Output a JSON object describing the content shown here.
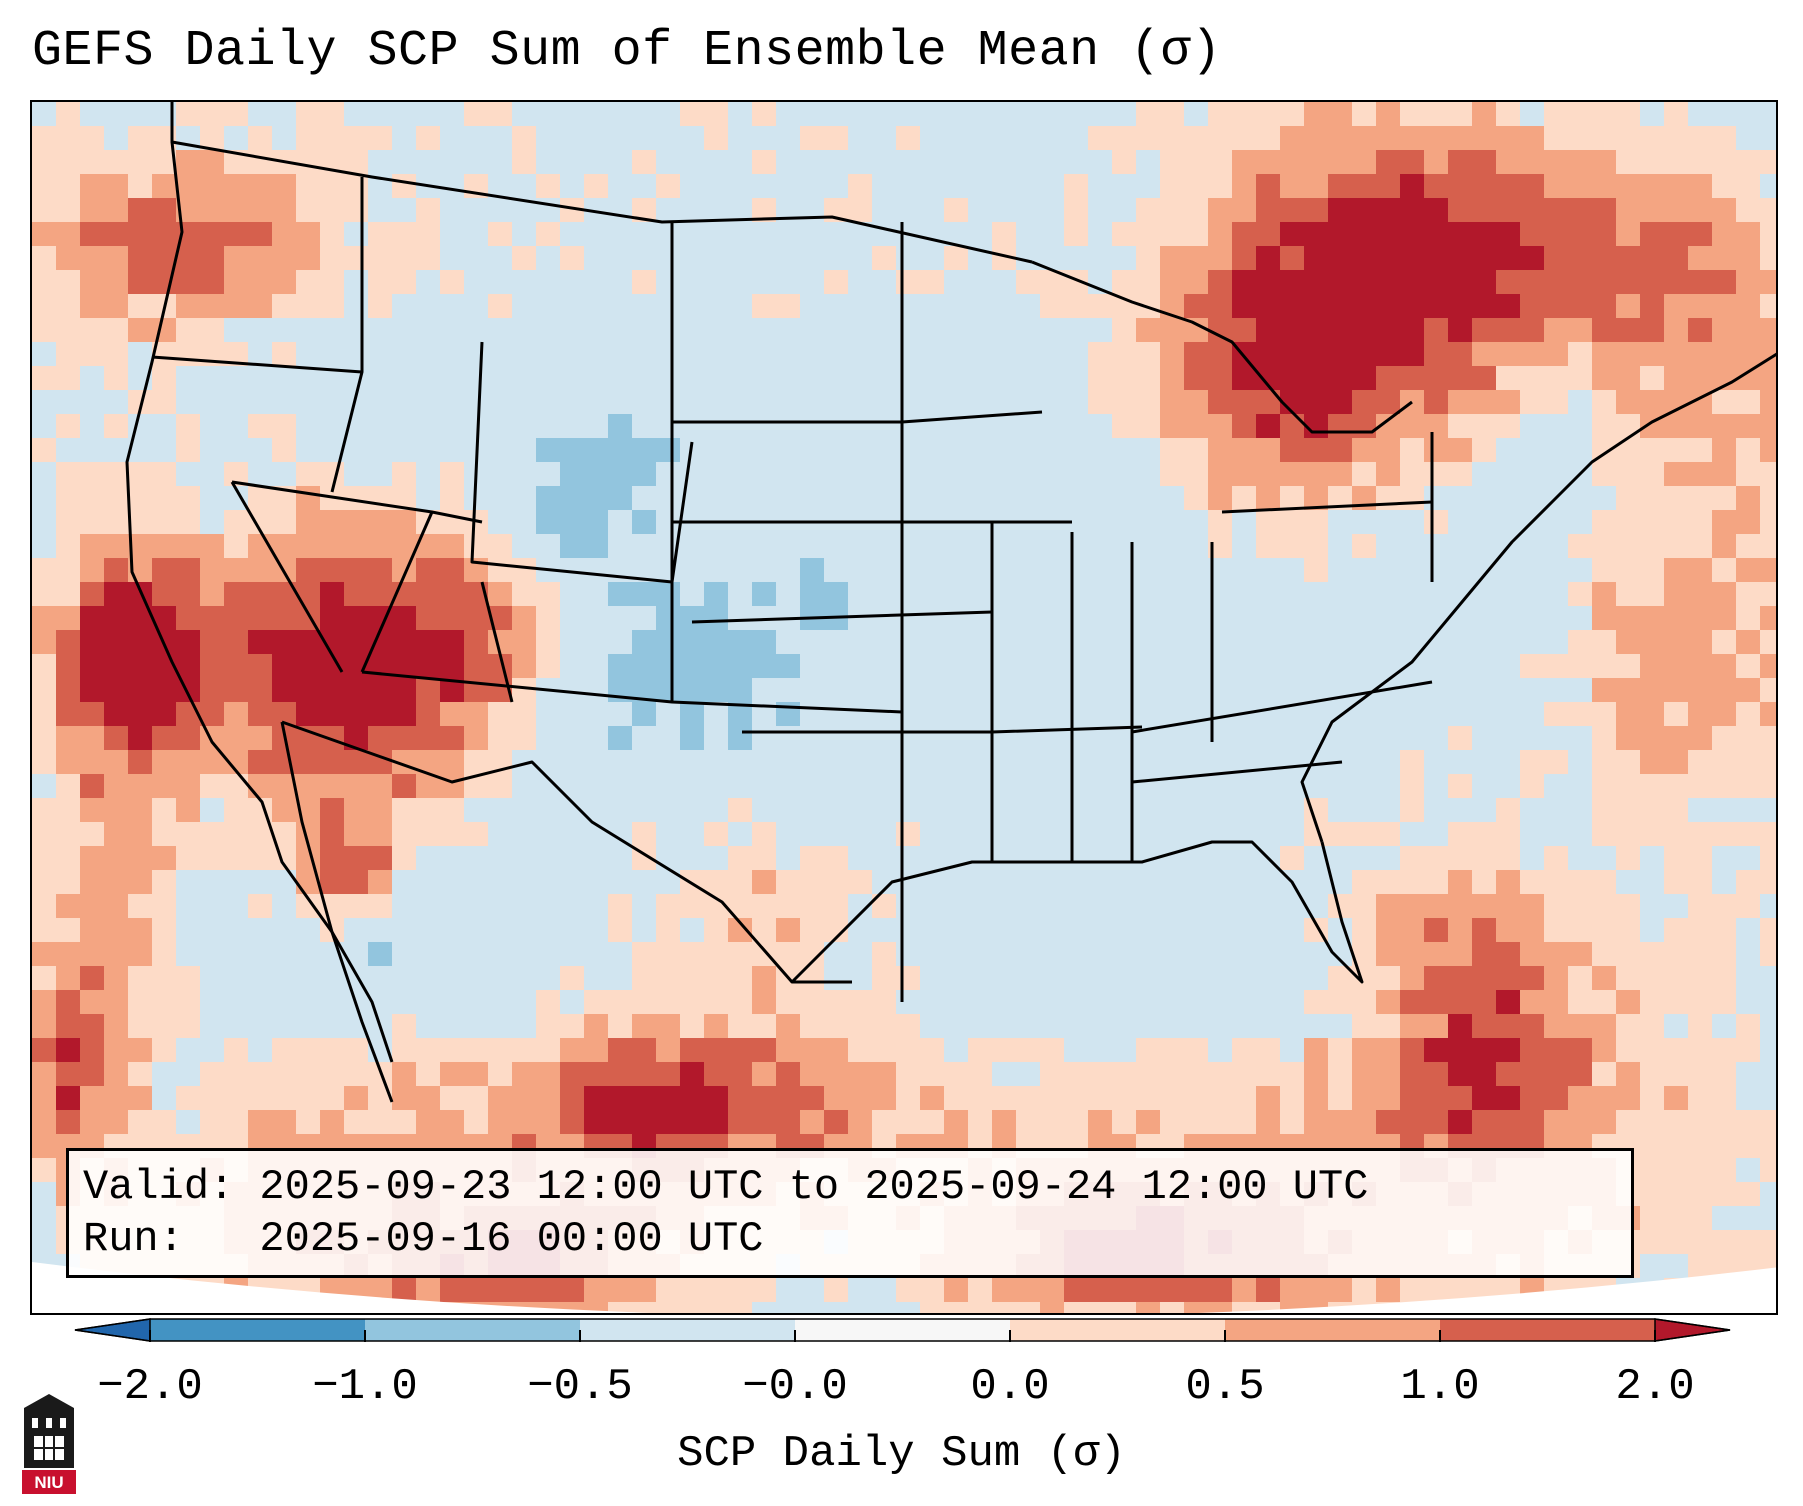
{
  "title": "GEFS Daily SCP Sum of Ensemble Mean (σ)",
  "info_box": {
    "valid_line": "Valid: 2025-09-23 12:00 UTC to 2025-09-24 12:00 UTC",
    "run_line": "Run:   2025-09-16 00:00 UTC"
  },
  "colorbar": {
    "label": "SCP Daily Sum (σ)",
    "ticks": [
      "−2.0",
      "−1.0",
      "−0.5",
      "−0.0",
      "0.0",
      "0.5",
      "1.0",
      "2.0"
    ],
    "colors": {
      "extend_low": "#2166ac",
      "bins": [
        "#4393c3",
        "#92c5de",
        "#d1e5f0",
        "#f7f7f7",
        "#fddbc7",
        "#f4a582",
        "#d6604d"
      ],
      "extend_high": "#b2182b"
    }
  },
  "logo": {
    "text": "NIU",
    "icon": "niu-castle-logo-icon"
  },
  "map": {
    "projection": "lambert-conformal",
    "region": "CONUS",
    "features": [
      "state-borders",
      "country-borders",
      "coastlines"
    ]
  }
}
